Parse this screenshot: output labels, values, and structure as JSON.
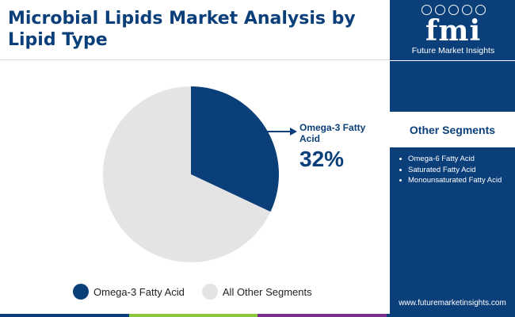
{
  "title": "Microbial Lipids Market Analysis by Lipid Type",
  "chart_data": {
    "type": "pie",
    "start_angle_deg": 0,
    "direction": "clockwise",
    "slices": [
      {
        "label": "Omega-3 Fatty Acid",
        "value": 32,
        "display": "32%",
        "color": "#0b3f7a"
      },
      {
        "label": "All Other Segments",
        "value": 68,
        "display": "",
        "color": "#e4e4e4"
      }
    ],
    "callout": {
      "label": "Omega-3 Fatty Acid",
      "value_text": "32%"
    },
    "legend": {
      "placement": "bottom",
      "items": [
        {
          "label": "Omega-3 Fatty Acid",
          "color": "#0b3f7a"
        },
        {
          "label": "All Other Segments",
          "color": "#e4e4e4"
        }
      ]
    }
  },
  "sidebar": {
    "logo_mark": "fmi",
    "logo_text": "Future Market Insights",
    "other_segments_title": "Other Segments",
    "other_segments": [
      "Omega-6 Fatty Acid",
      "Saturated Fatty Acid",
      "Monounsaturated Fatty Acid"
    ],
    "website": "www.futuremarketinsights.com"
  },
  "colors": {
    "brand": "#0b3f7a",
    "bottom_bar": [
      "#0b3f7a",
      "#8cc63f",
      "#7b2e8e",
      "#0b3f7a"
    ]
  }
}
